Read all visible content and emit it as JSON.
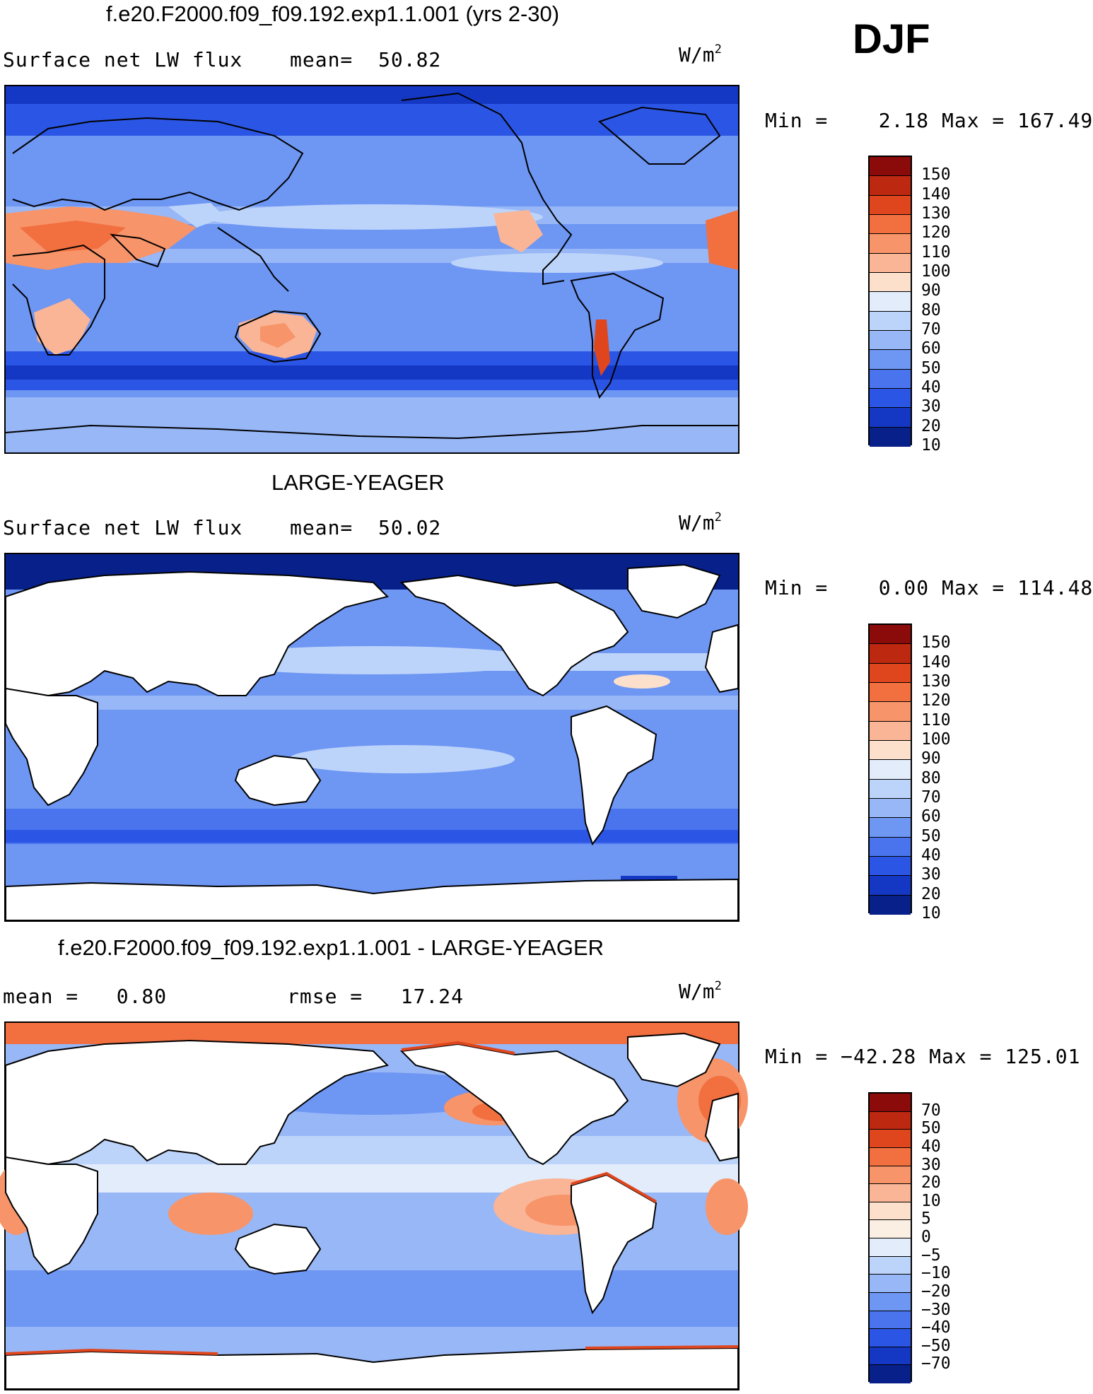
{
  "season": "DJF",
  "colors": {
    "ocean_base": "#6e96f3",
    "land": "#ffffff",
    "coast": "#000000"
  },
  "panels": [
    {
      "title": "f.e20.F2000.f09_f09.192.exp1.1.001 (yrs 2-30)",
      "left_label": "Surface net LW flux",
      "mid_label": "mean=  50.82",
      "units": "W/m",
      "units_sup": "2",
      "minmax": "Min =    2.18 Max = 167.49",
      "colorbar": {
        "colors": [
          "#8b0a0a",
          "#bd2810",
          "#e0461e",
          "#f26f40",
          "#f7946a",
          "#f9b596",
          "#fde0cc",
          "#e2ecfb",
          "#bdd4fa",
          "#98b7f6",
          "#6e96f3",
          "#4a74ee",
          "#2b55e4",
          "#1438c4",
          "#08208a"
        ],
        "labels": [
          "150",
          "140",
          "130",
          "120",
          "110",
          "100",
          "90",
          "80",
          "70",
          "60",
          "50",
          "40",
          "30",
          "20",
          "10"
        ]
      }
    },
    {
      "title": "LARGE-YEAGER",
      "left_label": "Surface net LW flux",
      "mid_label": "mean=  50.02",
      "units": "W/m",
      "units_sup": "2",
      "minmax": "Min =    0.00 Max = 114.48",
      "colorbar": {
        "colors": [
          "#8b0a0a",
          "#bd2810",
          "#e0461e",
          "#f26f40",
          "#f7946a",
          "#f9b596",
          "#fde0cc",
          "#e2ecfb",
          "#bdd4fa",
          "#98b7f6",
          "#6e96f3",
          "#4a74ee",
          "#2b55e4",
          "#1438c4",
          "#08208a"
        ],
        "labels": [
          "150",
          "140",
          "130",
          "120",
          "110",
          "100",
          "90",
          "80",
          "70",
          "60",
          "50",
          "40",
          "30",
          "20",
          "10"
        ]
      }
    },
    {
      "title": "f.e20.F2000.f09_f09.192.exp1.1.001 - LARGE-YEAGER",
      "left_label": "mean =   0.80",
      "mid_label": "rmse =   17.24",
      "units": "W/m",
      "units_sup": "2",
      "minmax": "Min = −42.28 Max = 125.01",
      "colorbar": {
        "colors": [
          "#8b0a0a",
          "#bd2810",
          "#e0461e",
          "#f26f40",
          "#f7946a",
          "#f9b596",
          "#fde0cc",
          "#fbeee2",
          "#e2ecfb",
          "#bdd4fa",
          "#98b7f6",
          "#6e96f3",
          "#4a74ee",
          "#2b55e4",
          "#1438c4",
          "#08208a"
        ],
        "labels": [
          "70",
          "50",
          "40",
          "30",
          "20",
          "10",
          "5",
          "0",
          "−5",
          "−10",
          "−20",
          "−30",
          "−40",
          "−50",
          "−70"
        ]
      }
    }
  ]
}
